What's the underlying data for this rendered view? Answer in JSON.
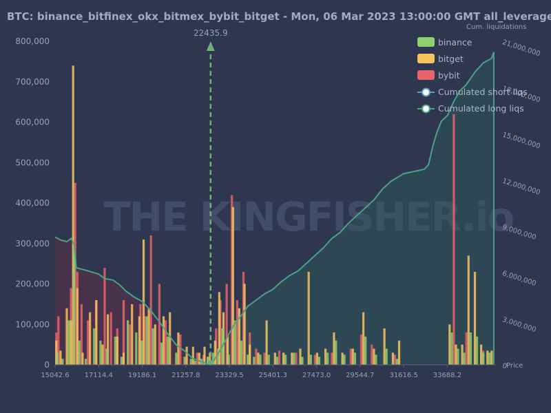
{
  "chart_data": {
    "type": "bar",
    "title": "BTC: binance_bitfinex_okx_bitmex_bybit_bitget - Mon, 06 Mar 2023 13:00:00 GMT all_leverage",
    "xlabel": "Price",
    "ylabel_right": "Cum. liquidations",
    "xticks": [
      15042.6,
      17114.4,
      19186.1,
      21257.8,
      23329.5,
      25401.3,
      27473.0,
      29544.7,
      31616.5,
      33688.2
    ],
    "xtick_labels": [
      "15042.6",
      "17114.4",
      "19186.1",
      "21257.8",
      "23329.5",
      "25401.3",
      "27473.0",
      "29544.7",
      "31616.5",
      "33688.2"
    ],
    "xlim": [
      15042.6,
      36000
    ],
    "yticks_left": [
      "0",
      "100,000",
      "200,000",
      "300,000",
      "400,000",
      "500,000",
      "600,000",
      "700,000",
      "800,000"
    ],
    "ylim_left": [
      0,
      800000
    ],
    "yticks_right": [
      "0",
      "3,000,000",
      "6,000,000",
      "9,000,000",
      "12,000,000",
      "15,000,000",
      "18,000,000",
      "21,000,000"
    ],
    "ylim_right": [
      0,
      21000000
    ],
    "current_price": 22435.9,
    "current_price_label": "22435.9",
    "legend": [
      {
        "label": "binance",
        "color": "#8fcf6f",
        "kind": "bar"
      },
      {
        "label": "bitget",
        "color": "#f6c45e",
        "kind": "bar"
      },
      {
        "label": "bybit",
        "color": "#e8636b",
        "kind": "bar"
      },
      {
        "label": "Cumulated short liqs",
        "color": "#5aa0c0",
        "kind": "line"
      },
      {
        "label": "Cumulated long liqs",
        "color": "#4aa384",
        "kind": "line"
      }
    ],
    "legend_position": "top-right",
    "grid": false,
    "watermark": "THE KINGFISHER.io",
    "series": [
      {
        "name": "bybit",
        "color": "#e8636b",
        "x": [
          15100,
          15200,
          15800,
          16000,
          16100,
          16300,
          16600,
          17000,
          17400,
          17700,
          18000,
          18300,
          18600,
          19100,
          19300,
          19600,
          20000,
          20300,
          21000,
          21800,
          22100,
          22300,
          22700,
          22900,
          23200,
          23450,
          23700,
          24000,
          24300,
          24600,
          25000,
          25700,
          26500,
          27400,
          28200,
          29100,
          29600,
          30100,
          31200,
          34000,
          34600,
          35400
        ],
        "values": [
          80000,
          120000,
          190000,
          450000,
          230000,
          150000,
          110000,
          160000,
          240000,
          130000,
          90000,
          160000,
          100000,
          150000,
          120000,
          320000,
          200000,
          110000,
          75000,
          30000,
          25000,
          20000,
          90000,
          160000,
          200000,
          420000,
          160000,
          230000,
          80000,
          40000,
          30000,
          35000,
          30000,
          25000,
          30000,
          40000,
          75000,
          50000,
          25000,
          620000,
          80000,
          35000
        ]
      },
      {
        "name": "bitget",
        "color": "#f6c45e",
        "x": [
          15100,
          15300,
          15600,
          15800,
          15900,
          16100,
          16350,
          16700,
          17000,
          17300,
          17550,
          18000,
          18300,
          18700,
          19050,
          19250,
          19500,
          19800,
          20200,
          20500,
          20900,
          21300,
          21600,
          21900,
          22150,
          22400,
          22650,
          22850,
          23050,
          23250,
          23500,
          23800,
          24050,
          24300,
          24700,
          25100,
          25500,
          25900,
          26300,
          26700,
          27100,
          27500,
          27900,
          28300,
          28700,
          29200,
          29700,
          30200,
          30700,
          31100,
          31400,
          33800,
          34100,
          34400,
          34700,
          35000,
          35300,
          35600,
          35800
        ],
        "values": [
          60000,
          35000,
          140000,
          110000,
          740000,
          190000,
          30000,
          130000,
          160000,
          50000,
          125000,
          70000,
          30000,
          150000,
          120000,
          310000,
          140000,
          100000,
          120000,
          130000,
          80000,
          45000,
          45000,
          30000,
          45000,
          30000,
          60000,
          180000,
          130000,
          70000,
          390000,
          140000,
          200000,
          50000,
          30000,
          110000,
          30000,
          30000,
          30000,
          40000,
          230000,
          30000,
          40000,
          80000,
          30000,
          40000,
          130000,
          40000,
          90000,
          30000,
          60000,
          100000,
          50000,
          50000,
          270000,
          230000,
          50000,
          35000,
          35000
        ]
      },
      {
        "name": "binance",
        "color": "#8fcf6f",
        "x": [
          15150,
          15400,
          15700,
          15950,
          16200,
          16500,
          16900,
          17200,
          17500,
          17900,
          18200,
          18500,
          18900,
          19150,
          19400,
          19700,
          20100,
          20400,
          20800,
          21200,
          21500,
          21700,
          22000,
          22300,
          22550,
          22800,
          23000,
          23300,
          23600,
          23900,
          24200,
          24500,
          24800,
          25200,
          25600,
          26000,
          26400,
          26800,
          27200,
          27600,
          28000,
          28400,
          28800,
          29300,
          29800,
          30300,
          30800,
          31300,
          33900,
          34200,
          34500,
          34800,
          35100,
          35400,
          35700
        ],
        "values": [
          30000,
          15000,
          110000,
          280000,
          60000,
          15000,
          90000,
          60000,
          40000,
          70000,
          20000,
          110000,
          80000,
          60000,
          120000,
          90000,
          55000,
          70000,
          30000,
          20000,
          15000,
          10000,
          15000,
          20000,
          30000,
          40000,
          90000,
          25000,
          110000,
          60000,
          25000,
          20000,
          25000,
          25000,
          20000,
          25000,
          30000,
          20000,
          25000,
          20000,
          30000,
          60000,
          25000,
          30000,
          70000,
          25000,
          40000,
          15000,
          80000,
          40000,
          30000,
          80000,
          70000,
          30000,
          30000
        ]
      }
    ],
    "cumulated_short_liqs": {
      "name": "Cumulated short liqs",
      "price": [
        22435.9,
        22700,
        23000,
        23300,
        23600,
        23900,
        24200,
        24600,
        25000,
        25400,
        25800,
        26200,
        26600,
        27000,
        27400,
        27800,
        28200,
        28600,
        29000,
        29400,
        29800,
        30200,
        30600,
        31000,
        31600,
        32600,
        32800,
        33000,
        33200,
        33400,
        33700,
        34000,
        34300,
        34600,
        35000,
        35400,
        35800,
        35900
      ],
      "values": [
        0,
        500000,
        1200000,
        2000000,
        2700000,
        3200000,
        3800000,
        4200000,
        4600000,
        4900000,
        5400000,
        5800000,
        6100000,
        6600000,
        7100000,
        7600000,
        8200000,
        8600000,
        9200000,
        9700000,
        10200000,
        10700000,
        11400000,
        11900000,
        12400000,
        12700000,
        13000000,
        14200000,
        15100000,
        15800000,
        16200000,
        17100000,
        17800000,
        18200000,
        19000000,
        19600000,
        19900000,
        20300000
      ]
    },
    "cumulated_long_liqs": {
      "name": "Cumulated long liqs",
      "price": [
        15042.6,
        15300,
        15600,
        15800,
        15950,
        16050,
        16600,
        17100,
        17400,
        17800,
        18100,
        18400,
        18800,
        19200,
        19600,
        20000,
        20400,
        20800,
        21200,
        21600,
        22000,
        22435.9
      ],
      "values": [
        8300000,
        8100000,
        8000000,
        8200000,
        7800000,
        6300000,
        6100000,
        5900000,
        5600000,
        5500000,
        5200000,
        4800000,
        4400000,
        4100000,
        3500000,
        2800000,
        2000000,
        1300000,
        900000,
        400000,
        200000,
        0
      ]
    }
  }
}
